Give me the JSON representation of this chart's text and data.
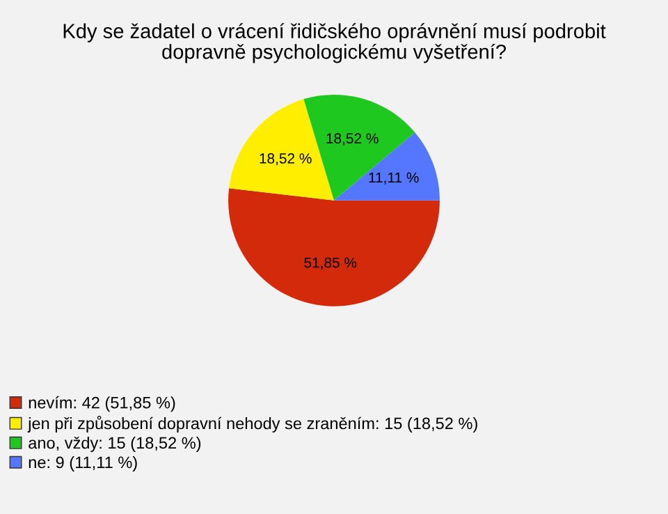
{
  "chart_data": {
    "type": "pie",
    "title": "Kdy se žadatel o vrácení řidičského oprávnění musí podrobit\ndopravně psychologickému vyšetření?",
    "categories": [
      "nevím: 42 (51,85 %)",
      "jen při způsobení dopravní nehody se zraněním: 15 (18,52 %)",
      "ano, vždy: 15 (18,52 %)",
      "ne: 9 (11,11 %)"
    ],
    "values": [
      51.85,
      18.52,
      18.52,
      11.11
    ],
    "value_labels": [
      "51,85 %",
      "18,52 %",
      "18,52 %",
      "11,11 %"
    ],
    "colors": [
      "#d42a0c",
      "#ffee00",
      "#1ec81e",
      "#5577ff"
    ],
    "legend": "bottom left"
  }
}
